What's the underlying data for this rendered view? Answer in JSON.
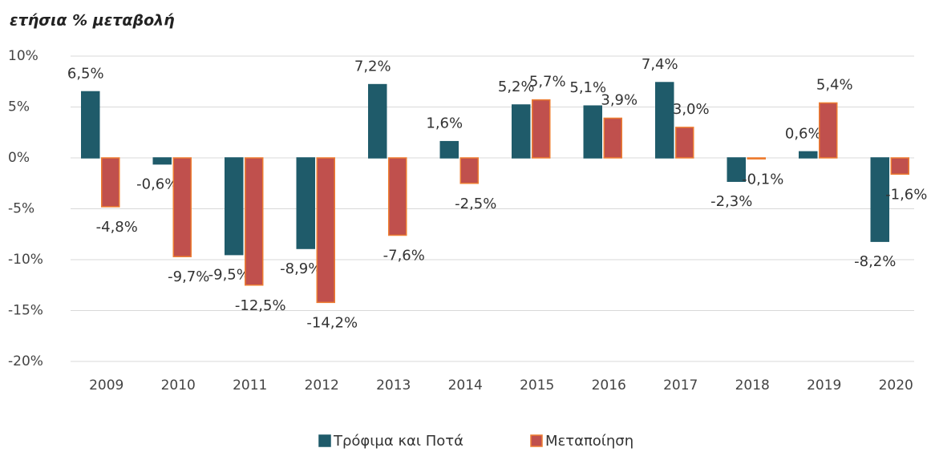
{
  "chart_data": {
    "type": "bar",
    "title": "ετήσια % μεταβολή",
    "categories": [
      "2009",
      "2010",
      "2011",
      "2012",
      "2013",
      "2014",
      "2015",
      "2016",
      "2017",
      "2018",
      "2019",
      "2020"
    ],
    "series": [
      {
        "name": "Τρόφιμα και Ποτά",
        "color": "#1f5b6a",
        "border": "#1f5b6a",
        "values": [
          6.5,
          -0.6,
          -9.5,
          -8.9,
          7.2,
          1.6,
          5.2,
          5.1,
          7.4,
          -2.3,
          0.6,
          -8.2
        ],
        "value_labels": [
          "6,5%",
          "-0,6%",
          "-9,5%",
          "-8,9%",
          "7,2%",
          "1,6%",
          "5,2%",
          "5,1%",
          "7,4%",
          "-2,3%",
          "0,6%",
          "-8,2%"
        ]
      },
      {
        "name": "Μεταποίηση",
        "color": "#c0504d",
        "border": "#ed7d31",
        "values": [
          -4.8,
          -9.7,
          -12.5,
          -14.2,
          -7.6,
          -2.5,
          5.7,
          3.9,
          3.0,
          -0.1,
          5.4,
          -1.6
        ],
        "value_labels": [
          "-4,8%",
          "-9,7%",
          "-12,5%",
          "-14,2%",
          "-7,6%",
          "-2,5%",
          "5,7%",
          "3,9%",
          "3,0%",
          "-0,1%",
          "5,4%",
          "-1,6%"
        ]
      }
    ],
    "ylim": [
      -20,
      10
    ],
    "yticks": [
      {
        "value": -20,
        "label": "-20%"
      },
      {
        "value": -15,
        "label": "-15%"
      },
      {
        "value": -10,
        "label": "-10%"
      },
      {
        "value": -5,
        "label": "-5%"
      },
      {
        "value": 0,
        "label": "0%"
      },
      {
        "value": 5,
        "label": "5%"
      },
      {
        "value": 10,
        "label": "10%"
      }
    ],
    "grid": true,
    "legend": "bottom"
  }
}
